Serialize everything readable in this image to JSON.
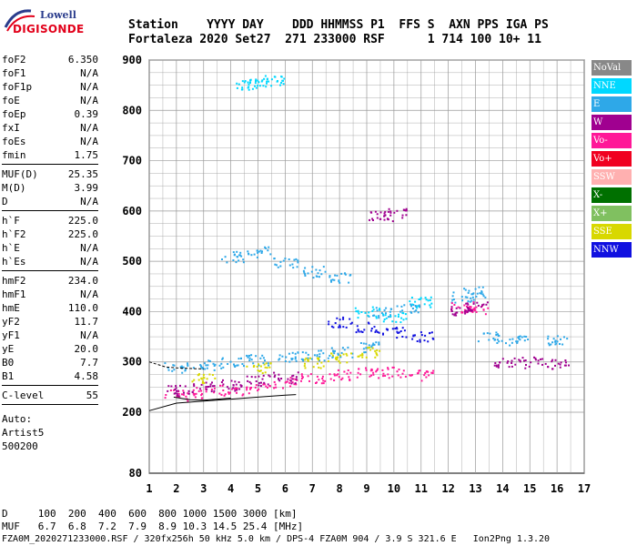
{
  "logo": {
    "line1": "Lowell",
    "line2": "DIGISONDE"
  },
  "header": {
    "labels": "Station    YYYY DAY    DDD HHMMSS P1  FFS S  AXN PPS IGA PS",
    "values": "Fortaleza 2020 Set27  271 233000 RSF      1 714 100 10+ 11"
  },
  "params": [
    {
      "k": "foF2",
      "v": "6.350"
    },
    {
      "k": "foF1",
      "v": "N/A"
    },
    {
      "k": "foF1p",
      "v": "N/A"
    },
    {
      "k": "foE",
      "v": "N/A"
    },
    {
      "k": "foEp",
      "v": "0.39"
    },
    {
      "k": "fxI",
      "v": "N/A"
    },
    {
      "k": "foEs",
      "v": "N/A"
    },
    {
      "k": "fmin",
      "v": "1.75"
    },
    {
      "sep": true
    },
    {
      "k": "MUF(D)",
      "v": "25.35"
    },
    {
      "k": "M(D)",
      "v": "3.99"
    },
    {
      "k": "D",
      "v": "N/A"
    },
    {
      "sep": true
    },
    {
      "k": "h`F",
      "v": "225.0"
    },
    {
      "k": "h`F2",
      "v": "225.0"
    },
    {
      "k": "h`E",
      "v": "N/A"
    },
    {
      "k": "h`Es",
      "v": "N/A"
    },
    {
      "sep": true
    },
    {
      "k": "hmF2",
      "v": "234.0"
    },
    {
      "k": "hmF1",
      "v": "N/A"
    },
    {
      "k": "hmE",
      "v": "110.0"
    },
    {
      "k": "yF2",
      "v": "11.7"
    },
    {
      "k": "yF1",
      "v": "N/A"
    },
    {
      "k": "yE",
      "v": "20.0"
    },
    {
      "k": "B0",
      "v": "7.7"
    },
    {
      "k": "B1",
      "v": "4.58"
    },
    {
      "sep": true
    },
    {
      "k": "C-level",
      "v": "55"
    },
    {
      "sep": true
    }
  ],
  "misc": {
    "auto": "Auto:",
    "artist": "Artist5",
    "code": "500200"
  },
  "legend": [
    {
      "label": "NoVal",
      "color": "#888888"
    },
    {
      "label": "NNE",
      "color": "#00d8ff"
    },
    {
      "label": "E",
      "color": "#2ea8e8"
    },
    {
      "label": "W",
      "color": "#a00090"
    },
    {
      "label": "Vo-",
      "color": "#ff1898"
    },
    {
      "label": "Vo+",
      "color": "#f00020"
    },
    {
      "label": "SSW",
      "color": "#ffb0b0"
    },
    {
      "label": "X-",
      "color": "#007000"
    },
    {
      "label": "X+",
      "color": "#80c060"
    },
    {
      "label": "SSE",
      "color": "#d8d800"
    },
    {
      "label": "NNW",
      "color": "#1010e0"
    }
  ],
  "footer": {
    "line1": "D     100  200  400  600  800 1000 1500 3000 [km]",
    "line2": "MUF   6.7  6.8  7.2  7.9  8.9 10.3 14.5 25.4 [MHz]",
    "line3": "FZA0M_2020271233000.RSF / 320fx256h 50 kHz 5.0 km / DPS-4 FZA0M 904 / 3.9 S 321.6 E   Ion2Png 1.3.20"
  },
  "chart_data": {
    "type": "scatter",
    "xlim": [
      1,
      17
    ],
    "ylim": [
      80,
      900
    ],
    "xticks": [
      1,
      2,
      3,
      4,
      5,
      6,
      7,
      8,
      9,
      10,
      11,
      12,
      13,
      14,
      15,
      16,
      17
    ],
    "yticks": [
      80,
      200,
      300,
      400,
      500,
      600,
      700,
      800,
      900
    ],
    "grid": true,
    "legend_position": "right",
    "series": [
      {
        "name": "E",
        "color": "#2ea8e8",
        "points": [
          [
            2,
            290
          ],
          [
            3,
            295
          ],
          [
            4,
            300
          ],
          [
            5,
            305
          ],
          [
            6,
            310
          ],
          [
            7,
            315
          ],
          [
            8,
            320
          ],
          [
            9,
            330
          ],
          [
            9.5,
            400
          ],
          [
            10.5,
            410
          ],
          [
            12.5,
            430
          ],
          [
            13,
            440
          ],
          [
            13.5,
            350
          ],
          [
            14.5,
            345
          ],
          [
            16,
            345
          ],
          [
            4,
            510
          ],
          [
            5,
            520
          ],
          [
            6,
            500
          ],
          [
            7,
            480
          ],
          [
            8,
            470
          ]
        ]
      },
      {
        "name": "Vo-",
        "color": "#ff1898",
        "points": [
          [
            2,
            235
          ],
          [
            3,
            240
          ],
          [
            4,
            245
          ],
          [
            5,
            250
          ],
          [
            6,
            260
          ],
          [
            7,
            270
          ],
          [
            8,
            275
          ],
          [
            9,
            280
          ],
          [
            10,
            280
          ],
          [
            11,
            275
          ],
          [
            12.5,
            410
          ],
          [
            13,
            405
          ]
        ]
      },
      {
        "name": "W",
        "color": "#a00090",
        "points": [
          [
            2,
            245
          ],
          [
            3,
            250
          ],
          [
            4,
            255
          ],
          [
            5,
            265
          ],
          [
            6,
            270
          ],
          [
            9.5,
            590
          ],
          [
            10,
            595
          ],
          [
            12.5,
            405
          ],
          [
            13,
            410
          ],
          [
            14,
            300
          ],
          [
            15,
            300
          ],
          [
            16,
            298
          ]
        ]
      },
      {
        "name": "NNE",
        "color": "#00d8ff",
        "points": [
          [
            4.5,
            850
          ],
          [
            5,
            855
          ],
          [
            5.5,
            860
          ],
          [
            9,
            400
          ],
          [
            10,
            390
          ],
          [
            11,
            420
          ]
        ]
      },
      {
        "name": "SSE",
        "color": "#d8d800",
        "points": [
          [
            3,
            270
          ],
          [
            5,
            290
          ],
          [
            7,
            300
          ],
          [
            8,
            310
          ],
          [
            9,
            320
          ]
        ]
      },
      {
        "name": "NNW",
        "color": "#1010e0",
        "points": [
          [
            8,
            380
          ],
          [
            9,
            370
          ],
          [
            10,
            360
          ],
          [
            11,
            350
          ]
        ]
      }
    ]
  }
}
